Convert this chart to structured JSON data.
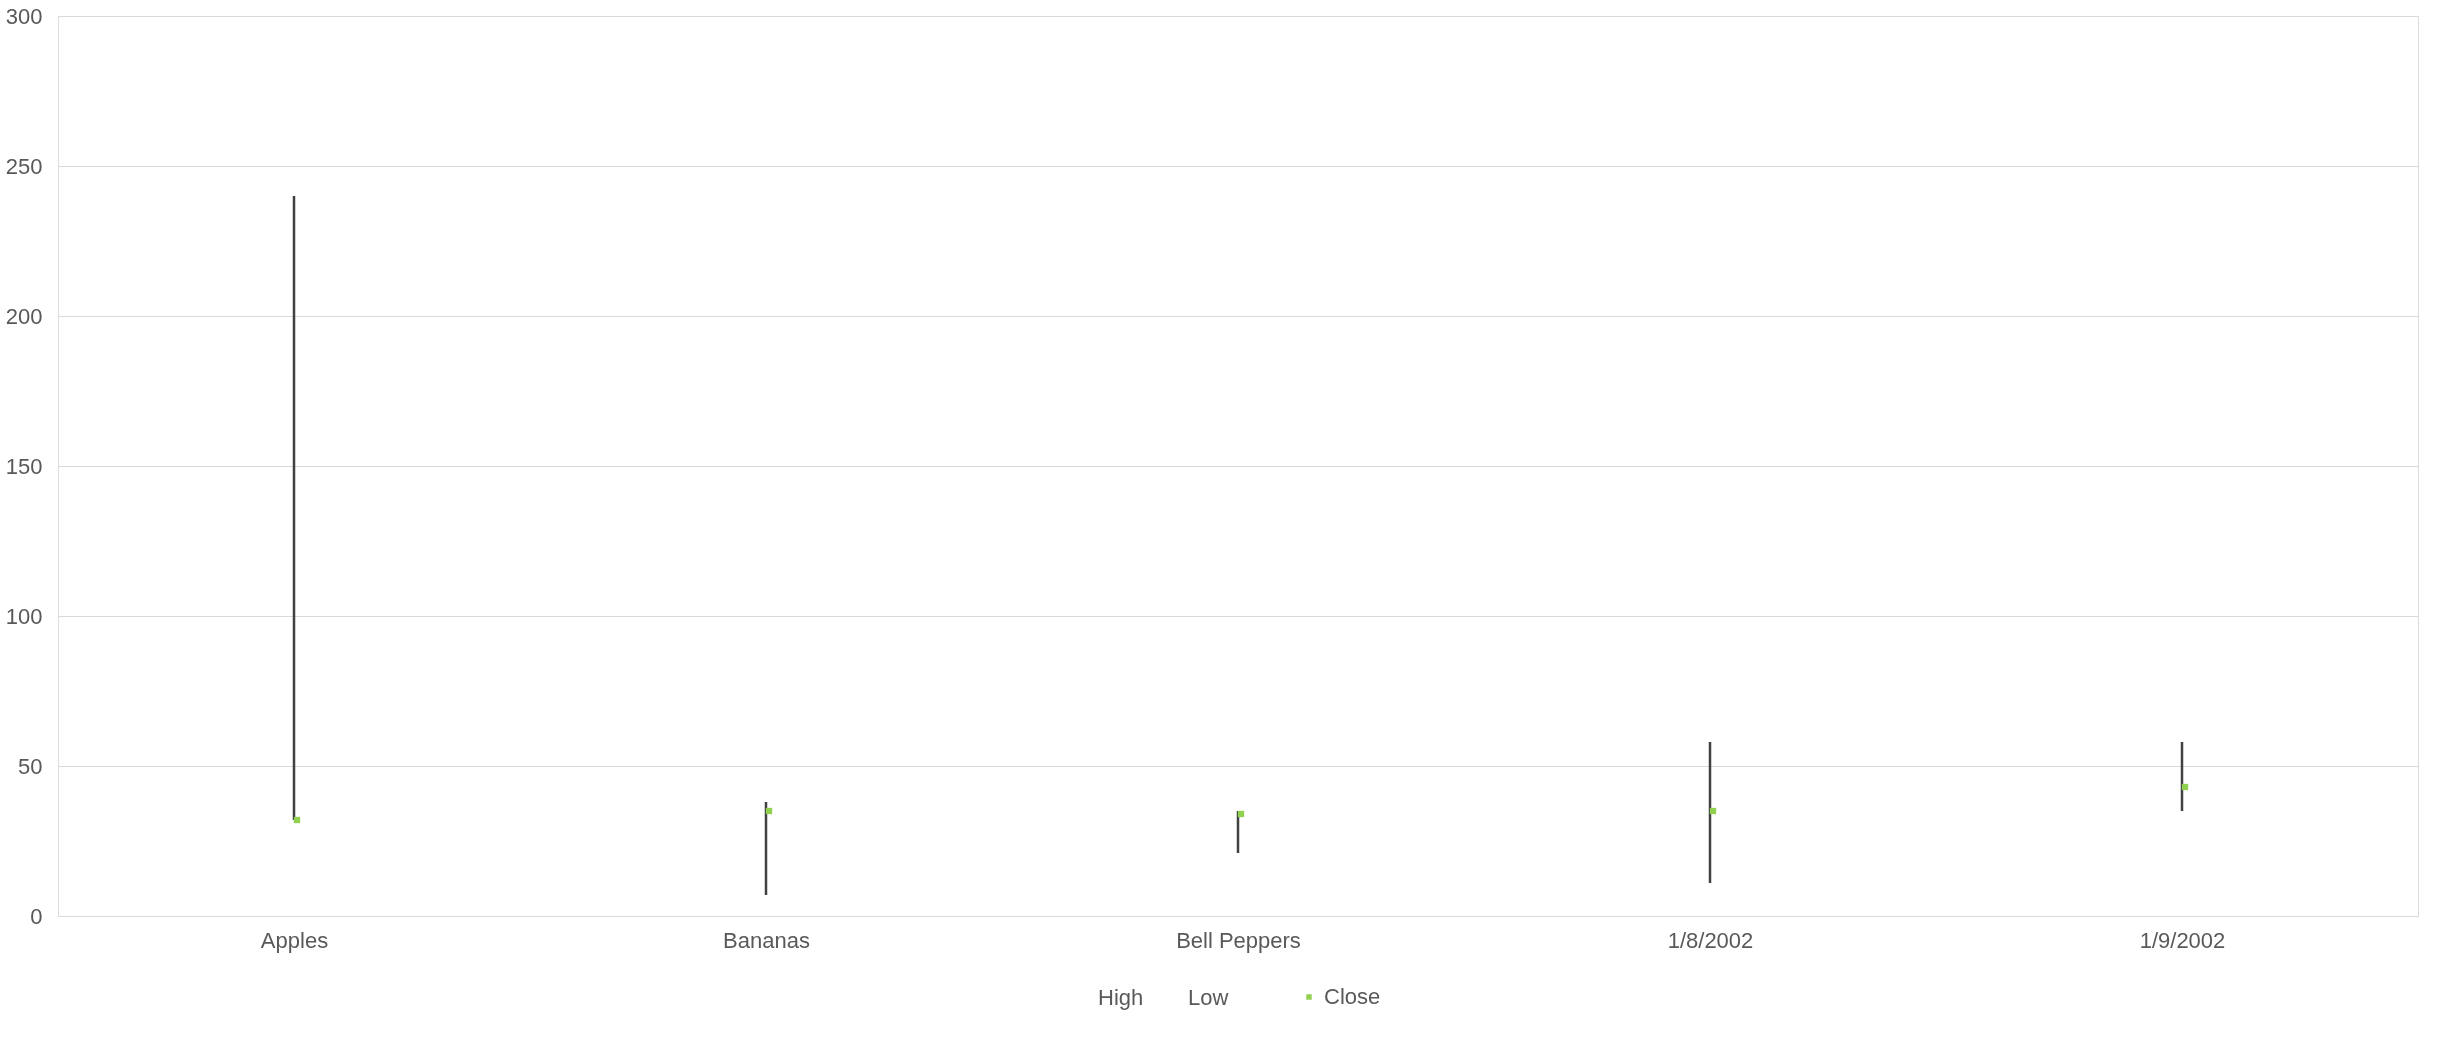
{
  "chart_data": {
    "type": "scatter",
    "categories": [
      "Apples",
      "Bananas",
      "Bell Peppers",
      "1/8/2002",
      "1/9/2002"
    ],
    "series": [
      {
        "name": "Close",
        "color": "#92d050",
        "values": [
          32,
          35,
          34,
          35,
          43
        ],
        "errors": [
          [
            32,
            240
          ],
          [
            7,
            38
          ],
          [
            21,
            35
          ],
          [
            11,
            58
          ],
          [
            35,
            58
          ]
        ]
      }
    ],
    "annotations": [
      "High",
      "Low"
    ],
    "ylim": [
      0,
      300
    ],
    "yticks": [
      0,
      50,
      100,
      150,
      200,
      250,
      300
    ],
    "grid": "y",
    "legend": "bottom",
    "marker": "square"
  }
}
